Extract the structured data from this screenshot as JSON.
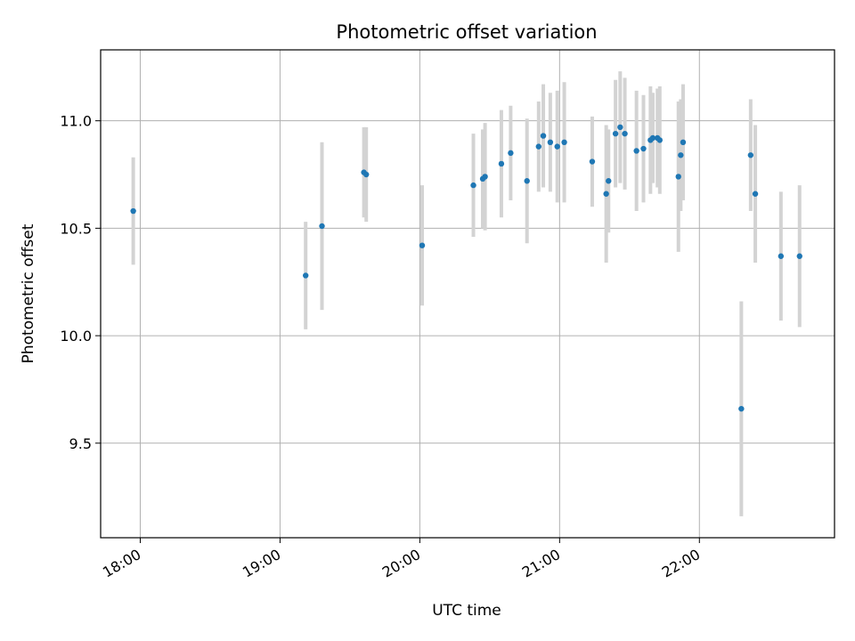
{
  "chart_data": {
    "type": "scatter",
    "title": "Photometric offset variation",
    "xlabel": "UTC time",
    "ylabel": "Photometric offset",
    "x_axis": "time",
    "xlim": [
      "17:43",
      "22:58"
    ],
    "ylim": [
      9.06,
      11.33
    ],
    "x_ticks": [
      "18:00",
      "19:00",
      "20:00",
      "21:00",
      "22:00"
    ],
    "y_ticks": [
      9.5,
      10.0,
      10.5,
      11.0
    ],
    "y_tick_labels": [
      "9.5",
      "10.0",
      "10.5",
      "11.0"
    ],
    "grid": true,
    "marker_color": "#1f77b4",
    "errorbar_color": "#d3d3d3",
    "points": [
      {
        "x": "17:57",
        "y": 10.58,
        "err": 0.25
      },
      {
        "x": "19:11",
        "y": 10.28,
        "err": 0.25
      },
      {
        "x": "19:18",
        "y": 10.51,
        "err": 0.39
      },
      {
        "x": "19:36",
        "y": 10.76,
        "err": 0.21
      },
      {
        "x": "19:37",
        "y": 10.75,
        "err": 0.22
      },
      {
        "x": "20:01",
        "y": 10.42,
        "err": 0.28
      },
      {
        "x": "20:23",
        "y": 10.7,
        "err": 0.24
      },
      {
        "x": "20:27",
        "y": 10.73,
        "err": 0.23
      },
      {
        "x": "20:28",
        "y": 10.74,
        "err": 0.25
      },
      {
        "x": "20:35",
        "y": 10.8,
        "err": 0.25
      },
      {
        "x": "20:39",
        "y": 10.85,
        "err": 0.22
      },
      {
        "x": "20:46",
        "y": 10.72,
        "err": 0.29
      },
      {
        "x": "20:51",
        "y": 10.88,
        "err": 0.21
      },
      {
        "x": "20:53",
        "y": 10.93,
        "err": 0.24
      },
      {
        "x": "20:56",
        "y": 10.9,
        "err": 0.23
      },
      {
        "x": "20:59",
        "y": 10.88,
        "err": 0.26
      },
      {
        "x": "21:02",
        "y": 10.9,
        "err": 0.28
      },
      {
        "x": "21:14",
        "y": 10.81,
        "err": 0.21
      },
      {
        "x": "21:20",
        "y": 10.66,
        "err": 0.32
      },
      {
        "x": "21:21",
        "y": 10.72,
        "err": 0.24
      },
      {
        "x": "21:24",
        "y": 10.94,
        "err": 0.25
      },
      {
        "x": "21:26",
        "y": 10.97,
        "err": 0.26
      },
      {
        "x": "21:28",
        "y": 10.94,
        "err": 0.26
      },
      {
        "x": "21:33",
        "y": 10.86,
        "err": 0.28
      },
      {
        "x": "21:36",
        "y": 10.87,
        "err": 0.25
      },
      {
        "x": "21:39",
        "y": 10.91,
        "err": 0.25
      },
      {
        "x": "21:40",
        "y": 10.92,
        "err": 0.21
      },
      {
        "x": "21:42",
        "y": 10.92,
        "err": 0.23
      },
      {
        "x": "21:43",
        "y": 10.91,
        "err": 0.25
      },
      {
        "x": "21:51",
        "y": 10.74,
        "err": 0.35
      },
      {
        "x": "21:52",
        "y": 10.84,
        "err": 0.26
      },
      {
        "x": "21:53",
        "y": 10.9,
        "err": 0.27
      },
      {
        "x": "22:18",
        "y": 9.66,
        "err": 0.5
      },
      {
        "x": "22:22",
        "y": 10.84,
        "err": 0.26
      },
      {
        "x": "22:24",
        "y": 10.66,
        "err": 0.32
      },
      {
        "x": "22:35",
        "y": 10.37,
        "err": 0.3
      },
      {
        "x": "22:43",
        "y": 10.37,
        "err": 0.33
      }
    ]
  }
}
